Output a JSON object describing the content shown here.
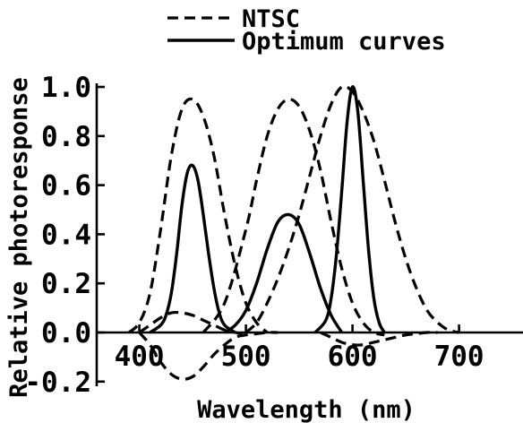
{
  "chart_data": {
    "type": "line",
    "xlabel": "Wavelength (nm)",
    "ylabel": "Relative photoresponse",
    "xlim": [
      360,
      760
    ],
    "ylim": [
      -0.2,
      1.0
    ],
    "x_ticks": [
      400,
      500,
      600,
      700
    ],
    "x_tick_labels": [
      "400",
      "500",
      "600",
      "700"
    ],
    "y_ticks": [
      1.0,
      0.8,
      0.6,
      0.4,
      0.2,
      0.0,
      -0.2
    ],
    "y_tick_labels": [
      "1.0",
      "0.8",
      "0.6",
      "0.4",
      "0.2",
      "0.0",
      "-0.2"
    ],
    "grid": false,
    "legend_placement": "top-center",
    "legend": [
      {
        "label": "NTSC",
        "style": "dashed"
      },
      {
        "label": "Optimum curves",
        "style": "solid"
      }
    ],
    "series": [
      {
        "group": "NTSC",
        "style": "dashed",
        "x": [
          390,
          400,
          410,
          420,
          430,
          440,
          450,
          460,
          470,
          480,
          490,
          500,
          510,
          520
        ],
        "y": [
          0.0,
          0.04,
          0.16,
          0.42,
          0.72,
          0.91,
          0.95,
          0.88,
          0.72,
          0.48,
          0.27,
          0.12,
          0.04,
          0.0
        ]
      },
      {
        "group": "NTSC",
        "style": "dashed",
        "x": [
          400,
          410,
          420,
          430,
          440,
          450,
          460,
          470,
          480,
          490,
          500
        ],
        "y": [
          0.0,
          0.03,
          0.06,
          0.08,
          0.08,
          0.07,
          0.05,
          0.03,
          0.01,
          0.0,
          -0.01
        ]
      },
      {
        "group": "NTSC",
        "style": "dashed",
        "x": [
          460,
          480,
          500,
          510,
          520,
          530,
          540,
          550,
          560,
          570,
          580,
          590,
          600,
          610,
          620,
          630
        ],
        "y": [
          0.0,
          0.12,
          0.42,
          0.62,
          0.8,
          0.91,
          0.95,
          0.92,
          0.82,
          0.66,
          0.45,
          0.26,
          0.12,
          0.04,
          0.0,
          -0.01
        ]
      },
      {
        "group": "NTSC",
        "style": "dashed",
        "x": [
          400,
          410,
          420,
          430,
          440,
          450,
          460,
          470,
          480,
          490,
          500,
          510,
          520,
          530
        ],
        "y": [
          0.0,
          -0.05,
          -0.12,
          -0.17,
          -0.19,
          -0.18,
          -0.14,
          -0.09,
          -0.05,
          -0.02,
          -0.01,
          -0.005,
          0.0,
          0.0
        ]
      },
      {
        "group": "NTSC",
        "style": "dashed",
        "x": [
          500,
          510,
          520,
          530,
          540,
          550,
          560,
          570,
          580,
          590,
          600,
          610,
          620,
          630,
          640,
          650,
          660,
          670,
          680,
          690,
          700
        ],
        "y": [
          0.0,
          0.04,
          0.12,
          0.22,
          0.34,
          0.48,
          0.64,
          0.8,
          0.93,
          1.0,
          0.98,
          0.9,
          0.78,
          0.62,
          0.45,
          0.3,
          0.18,
          0.09,
          0.04,
          0.01,
          0.0
        ]
      },
      {
        "group": "NTSC",
        "style": "dashed",
        "x": [
          570,
          580,
          590,
          600,
          610,
          620,
          630,
          640,
          650,
          660,
          670,
          680
        ],
        "y": [
          0.0,
          -0.02,
          -0.04,
          -0.05,
          -0.05,
          -0.04,
          -0.03,
          -0.02,
          -0.01,
          -0.005,
          0.0,
          0.0
        ]
      },
      {
        "group": "Optimum curves",
        "style": "solid",
        "x": [
          410,
          420,
          425,
          430,
          435,
          440,
          445,
          450,
          455,
          460,
          465,
          470,
          475,
          480,
          490
        ],
        "y": [
          0.0,
          0.03,
          0.07,
          0.16,
          0.32,
          0.52,
          0.65,
          0.68,
          0.62,
          0.48,
          0.32,
          0.18,
          0.08,
          0.03,
          0.0
        ]
      },
      {
        "group": "Optimum curves",
        "style": "solid",
        "x": [
          480,
          490,
          500,
          510,
          520,
          530,
          540,
          550,
          560,
          570,
          580,
          590
        ],
        "y": [
          0.0,
          0.03,
          0.09,
          0.2,
          0.34,
          0.45,
          0.48,
          0.44,
          0.32,
          0.18,
          0.07,
          0.0
        ]
      },
      {
        "group": "Optimum curves",
        "style": "solid",
        "x": [
          565,
          575,
          580,
          585,
          590,
          595,
          600,
          605,
          610,
          615,
          620,
          625,
          630
        ],
        "y": [
          0.0,
          0.05,
          0.14,
          0.32,
          0.58,
          0.86,
          1.0,
          0.9,
          0.62,
          0.34,
          0.14,
          0.04,
          0.0
        ]
      }
    ]
  }
}
